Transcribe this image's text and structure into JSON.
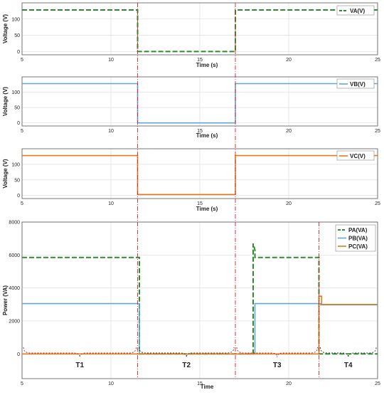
{
  "colors": {
    "va": "#2e8b2e",
    "vb": "#5fa8d3",
    "vc": "#e07b1f",
    "marker": "#d62728",
    "brace": "#b22222",
    "brace_alt": "#333333",
    "grid": "#dddddd",
    "frame": "#555555"
  },
  "chart_data": [
    {
      "type": "line",
      "ylabel": "Voltage (V)",
      "xlabel": "Time (s)",
      "xlim": [
        5,
        25
      ],
      "ylim": [
        -10,
        150
      ],
      "x_ticks": [
        "5",
        "10",
        "15",
        "20",
        "25"
      ],
      "x_tick_values": [
        5,
        10,
        15,
        20,
        25
      ],
      "y_ticks": [
        "0",
        "50",
        "100"
      ],
      "y_tick_values": [
        0,
        50,
        100
      ],
      "grid": true,
      "legend_position": "top-right",
      "series": [
        {
          "name": "VA(V)",
          "color_key": "va",
          "dash": true,
          "x": [
            5,
            11.5,
            11.5,
            17.0,
            17.0,
            25
          ],
          "y": [
            128,
            128,
            0,
            0,
            128,
            128
          ]
        }
      ]
    },
    {
      "type": "line",
      "ylabel": "Voltage (V)",
      "xlabel": "Time (s)",
      "xlim": [
        5,
        25
      ],
      "ylim": [
        -10,
        150
      ],
      "x_ticks": [
        "5",
        "10",
        "15",
        "20",
        "25"
      ],
      "x_tick_values": [
        5,
        10,
        15,
        20,
        25
      ],
      "y_ticks": [
        "0",
        "50",
        "100"
      ],
      "y_tick_values": [
        0,
        50,
        100
      ],
      "grid": true,
      "legend_position": "top-right",
      "series": [
        {
          "name": "VB(V)",
          "color_key": "vb",
          "dash": false,
          "x": [
            5,
            11.5,
            11.5,
            17.0,
            17.0,
            25
          ],
          "y": [
            128,
            128,
            0,
            0,
            128,
            128
          ]
        }
      ]
    },
    {
      "type": "line",
      "ylabel": "Voltage (V)",
      "xlabel": "Time (s)",
      "xlim": [
        5,
        25
      ],
      "ylim": [
        -10,
        150
      ],
      "x_ticks": [
        "5",
        "10",
        "15",
        "20",
        "25"
      ],
      "x_tick_values": [
        5,
        10,
        15,
        20,
        25
      ],
      "y_ticks": [
        "0",
        "50",
        "100"
      ],
      "y_tick_values": [
        0,
        50,
        100
      ],
      "grid": true,
      "legend_position": "top-right",
      "series": [
        {
          "name": "VC(V)",
          "color_key": "vc",
          "dash": false,
          "x": [
            5,
            11.5,
            11.5,
            17.0,
            17.0,
            25
          ],
          "y": [
            128,
            128,
            3,
            3,
            128,
            128
          ]
        }
      ]
    },
    {
      "type": "line",
      "ylabel": "Power (VA)",
      "xlabel": "Time",
      "xlim": [
        5,
        25
      ],
      "ylim": [
        -1500,
        8000
      ],
      "x_ticks": [
        "5",
        "10",
        "15",
        "20",
        "25"
      ],
      "x_tick_values": [
        5,
        10,
        15,
        20,
        25
      ],
      "y_ticks": [
        "0",
        "2000",
        "4000",
        "6000",
        "8000"
      ],
      "y_tick_values": [
        0,
        2000,
        4000,
        6000,
        8000
      ],
      "grid": true,
      "legend_position": "top-right",
      "series": [
        {
          "name": "PA(VA)",
          "color_key": "va",
          "dash": true,
          "x": [
            5,
            11.6,
            11.6,
            18.0,
            18.0,
            18.1,
            18.1,
            21.7,
            21.7,
            25
          ],
          "y": [
            5850,
            5850,
            0,
            0,
            6700,
            6300,
            5850,
            5850,
            0,
            0
          ]
        },
        {
          "name": "PB(VA)",
          "color_key": "vb",
          "dash": false,
          "x": [
            5,
            11.6,
            11.6,
            18.1,
            18.1,
            21.8,
            21.8,
            25
          ],
          "y": [
            3050,
            3050,
            0,
            0,
            3050,
            3050,
            2980,
            2980
          ]
        },
        {
          "name": "PC(VA)",
          "color_key": "vc",
          "dash": false,
          "x": [
            5,
            21.7,
            21.7,
            21.85,
            21.85,
            25
          ],
          "y": [
            0,
            0,
            3500,
            3500,
            3000,
            3000
          ]
        }
      ],
      "segments": [
        {
          "label": "T1",
          "from": 5,
          "to": 11.5,
          "color_key": "brace"
        },
        {
          "label": "T2",
          "from": 11.5,
          "to": 17.0,
          "color_key": "brace_alt"
        },
        {
          "label": "T3",
          "from": 17.0,
          "to": 21.7,
          "color_key": "brace"
        },
        {
          "label": "T4",
          "from": 21.7,
          "to": 25,
          "color_key": "brace_alt"
        }
      ]
    }
  ],
  "markers": {
    "x": [
      11.5,
      17.0,
      21.7
    ],
    "color_key": "marker"
  }
}
